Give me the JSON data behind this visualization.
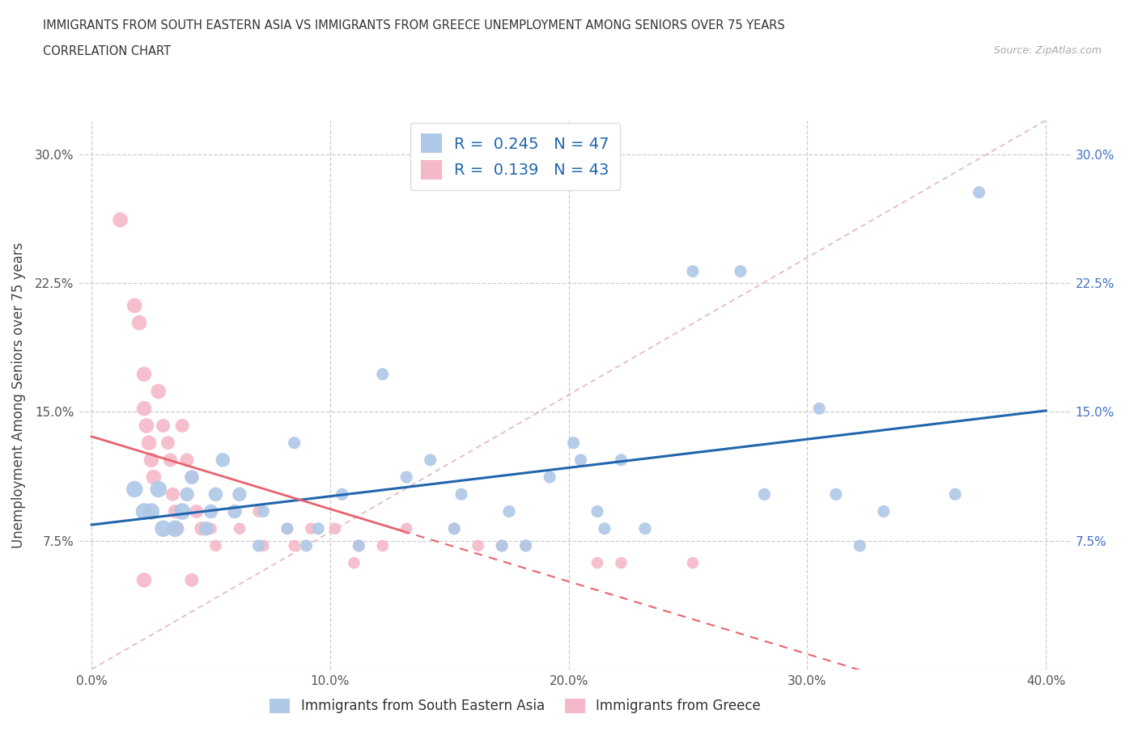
{
  "title_line1": "IMMIGRANTS FROM SOUTH EASTERN ASIA VS IMMIGRANTS FROM GREECE UNEMPLOYMENT AMONG SENIORS OVER 75 YEARS",
  "title_line2": "CORRELATION CHART",
  "source": "Source: ZipAtlas.com",
  "ylabel": "Unemployment Among Seniors over 75 years",
  "xlim": [
    -0.005,
    0.41
  ],
  "ylim": [
    0.0,
    0.32
  ],
  "xticks": [
    0.0,
    0.1,
    0.2,
    0.3,
    0.4
  ],
  "xtick_labels": [
    "0.0%",
    "10.0%",
    "20.0%",
    "30.0%",
    "40.0%"
  ],
  "yticks": [
    0.0,
    0.075,
    0.15,
    0.225,
    0.3
  ],
  "ytick_labels": [
    "",
    "7.5%",
    "15.0%",
    "22.5%",
    "30.0%"
  ],
  "legend_label1": "Immigrants from South Eastern Asia",
  "legend_label2": "Immigrants from Greece",
  "R1": 0.245,
  "N1": 47,
  "R2": 0.139,
  "N2": 43,
  "blue_color": "#aec8e8",
  "pink_color": "#f5b8c8",
  "blue_line_color": "#2166ac",
  "pink_line_color": "#e8636e",
  "ref_line_color": "#e8b4ba",
  "blue_scatter": [
    [
      0.018,
      0.105
    ],
    [
      0.022,
      0.092
    ],
    [
      0.025,
      0.092
    ],
    [
      0.028,
      0.105
    ],
    [
      0.03,
      0.082
    ],
    [
      0.035,
      0.082
    ],
    [
      0.038,
      0.092
    ],
    [
      0.04,
      0.102
    ],
    [
      0.042,
      0.112
    ],
    [
      0.048,
      0.082
    ],
    [
      0.05,
      0.092
    ],
    [
      0.052,
      0.102
    ],
    [
      0.055,
      0.122
    ],
    [
      0.06,
      0.092
    ],
    [
      0.062,
      0.102
    ],
    [
      0.07,
      0.072
    ],
    [
      0.072,
      0.092
    ],
    [
      0.082,
      0.082
    ],
    [
      0.085,
      0.132
    ],
    [
      0.09,
      0.072
    ],
    [
      0.095,
      0.082
    ],
    [
      0.105,
      0.102
    ],
    [
      0.112,
      0.072
    ],
    [
      0.122,
      0.172
    ],
    [
      0.132,
      0.112
    ],
    [
      0.142,
      0.122
    ],
    [
      0.152,
      0.082
    ],
    [
      0.155,
      0.102
    ],
    [
      0.172,
      0.072
    ],
    [
      0.175,
      0.092
    ],
    [
      0.182,
      0.072
    ],
    [
      0.192,
      0.112
    ],
    [
      0.202,
      0.132
    ],
    [
      0.205,
      0.122
    ],
    [
      0.212,
      0.092
    ],
    [
      0.215,
      0.082
    ],
    [
      0.222,
      0.122
    ],
    [
      0.232,
      0.082
    ],
    [
      0.252,
      0.232
    ],
    [
      0.272,
      0.232
    ],
    [
      0.282,
      0.102
    ],
    [
      0.305,
      0.152
    ],
    [
      0.312,
      0.102
    ],
    [
      0.322,
      0.072
    ],
    [
      0.332,
      0.092
    ],
    [
      0.362,
      0.102
    ],
    [
      0.372,
      0.278
    ]
  ],
  "pink_scatter": [
    [
      0.012,
      0.262
    ],
    [
      0.018,
      0.212
    ],
    [
      0.02,
      0.202
    ],
    [
      0.022,
      0.172
    ],
    [
      0.022,
      0.152
    ],
    [
      0.023,
      0.142
    ],
    [
      0.024,
      0.132
    ],
    [
      0.025,
      0.122
    ],
    [
      0.026,
      0.112
    ],
    [
      0.028,
      0.162
    ],
    [
      0.03,
      0.142
    ],
    [
      0.032,
      0.132
    ],
    [
      0.033,
      0.122
    ],
    [
      0.034,
      0.102
    ],
    [
      0.035,
      0.092
    ],
    [
      0.036,
      0.082
    ],
    [
      0.038,
      0.142
    ],
    [
      0.04,
      0.122
    ],
    [
      0.042,
      0.112
    ],
    [
      0.044,
      0.092
    ],
    [
      0.046,
      0.082
    ],
    [
      0.05,
      0.082
    ],
    [
      0.052,
      0.072
    ],
    [
      0.062,
      0.082
    ],
    [
      0.07,
      0.092
    ],
    [
      0.072,
      0.072
    ],
    [
      0.082,
      0.082
    ],
    [
      0.085,
      0.072
    ],
    [
      0.092,
      0.082
    ],
    [
      0.102,
      0.082
    ],
    [
      0.11,
      0.062
    ],
    [
      0.112,
      0.072
    ],
    [
      0.122,
      0.072
    ],
    [
      0.132,
      0.082
    ],
    [
      0.152,
      0.082
    ],
    [
      0.162,
      0.072
    ],
    [
      0.172,
      0.072
    ],
    [
      0.182,
      0.072
    ],
    [
      0.212,
      0.062
    ],
    [
      0.222,
      0.062
    ],
    [
      0.252,
      0.062
    ],
    [
      0.022,
      0.052
    ],
    [
      0.042,
      0.052
    ]
  ]
}
